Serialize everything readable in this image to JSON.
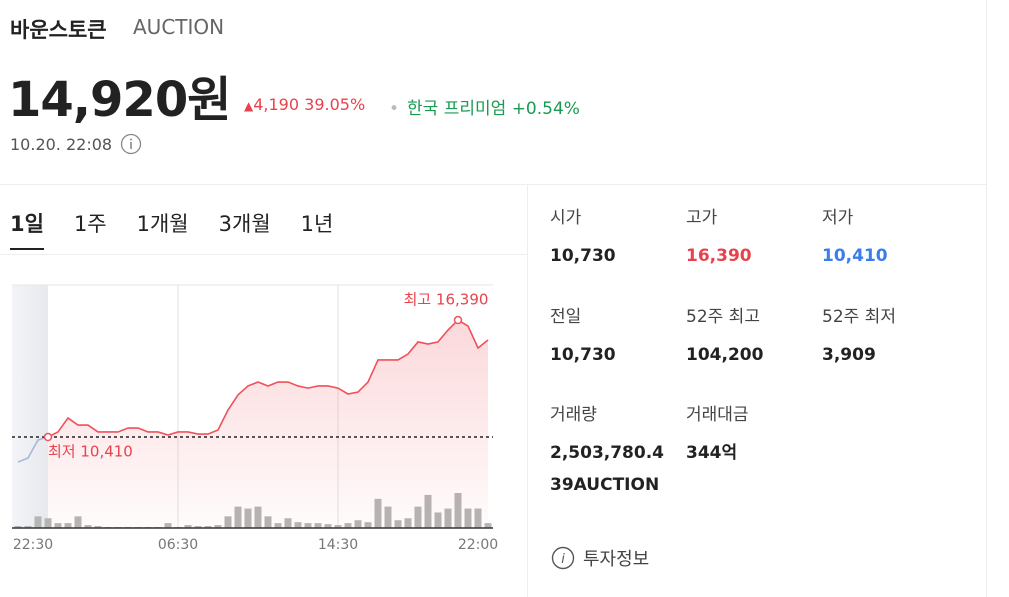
{
  "header": {
    "name": "바운스토큰",
    "ticker": "AUCTION",
    "price": "14,920원",
    "change": "4,190",
    "change_rate": "39.05%",
    "premium_label": "한국 프리미엄",
    "premium_value": "+0.54%",
    "time": "10.20. 22:08"
  },
  "tabs": [
    "1일",
    "1주",
    "1개월",
    "3개월",
    "1년"
  ],
  "stats": [
    {
      "label": "시가",
      "value": "10,730"
    },
    {
      "label": "고가",
      "value": "16,390"
    },
    {
      "label": "저가",
      "value": "10,410"
    },
    {
      "label": "전일",
      "value": "10,730"
    },
    {
      "label": "52주 최고",
      "value": "104,200"
    },
    {
      "label": "52주 최저",
      "value": "3,909"
    },
    {
      "label": "거래량",
      "value": "2,503,780.439AUCTION"
    },
    {
      "label": "거래대금",
      "value": "344억"
    }
  ],
  "info_link": "투자정보",
  "chart_data": {
    "type": "line",
    "categories": [
      null,
      null,
      "22:30",
      null,
      null,
      null,
      null,
      null,
      null,
      null,
      null,
      null,
      null,
      null,
      null,
      null,
      "06:30",
      null,
      null,
      null,
      null,
      null,
      null,
      null,
      null,
      null,
      null,
      null,
      null,
      null,
      null,
      null,
      "14:30",
      null,
      null,
      null,
      null,
      null,
      null,
      null,
      null,
      null,
      null,
      null,
      null,
      null,
      "22:00",
      null
    ],
    "series": [
      {
        "color": "#a9b8d4",
        "values": [
          9130,
          9340,
          10260,
          10410,
          null,
          null,
          null,
          null,
          null,
          null,
          null,
          null,
          null,
          null,
          null,
          null,
          null,
          null,
          null,
          null,
          null,
          null,
          null,
          null,
          null,
          null,
          null,
          null,
          null,
          null,
          null,
          null,
          null,
          null,
          null,
          null,
          null,
          null,
          null,
          null,
          null,
          null,
          null,
          null,
          null,
          null,
          null,
          null
        ]
      },
      {
        "color": "#f0505a",
        "values": [
          null,
          null,
          null,
          10410,
          10670,
          11380,
          11020,
          11020,
          10670,
          10670,
          10670,
          10870,
          10870,
          10670,
          10670,
          10510,
          10670,
          10670,
          10560,
          10560,
          10770,
          11790,
          12560,
          13020,
          13220,
          13020,
          13220,
          13220,
          13020,
          12910,
          13020,
          13020,
          12910,
          12610,
          12710,
          13220,
          14350,
          14350,
          14350,
          14650,
          15270,
          15160,
          15270,
          15880,
          16390,
          16080,
          14960,
          15370
        ]
      },
      {
        "color": "#b5b5b5",
        "axis": "y2",
        "values": [
          2,
          2,
          12,
          10,
          5,
          5,
          12,
          3,
          2,
          1,
          1,
          1,
          1,
          1,
          1,
          5,
          1,
          3,
          2,
          2,
          3,
          12,
          22,
          20,
          22,
          12,
          5,
          10,
          6,
          5,
          5,
          4,
          3,
          5,
          8,
          6,
          30,
          22,
          8,
          10,
          22,
          34,
          16,
          20,
          36,
          20,
          20,
          5
        ]
      }
    ],
    "annotations": [
      {
        "text": "최고 16,390"
      },
      {
        "text": "최저 10,410"
      }
    ],
    "ylim": [
      5760,
      18180
    ],
    "y2lim": [
      0,
      250
    ],
    "grid": true
  }
}
